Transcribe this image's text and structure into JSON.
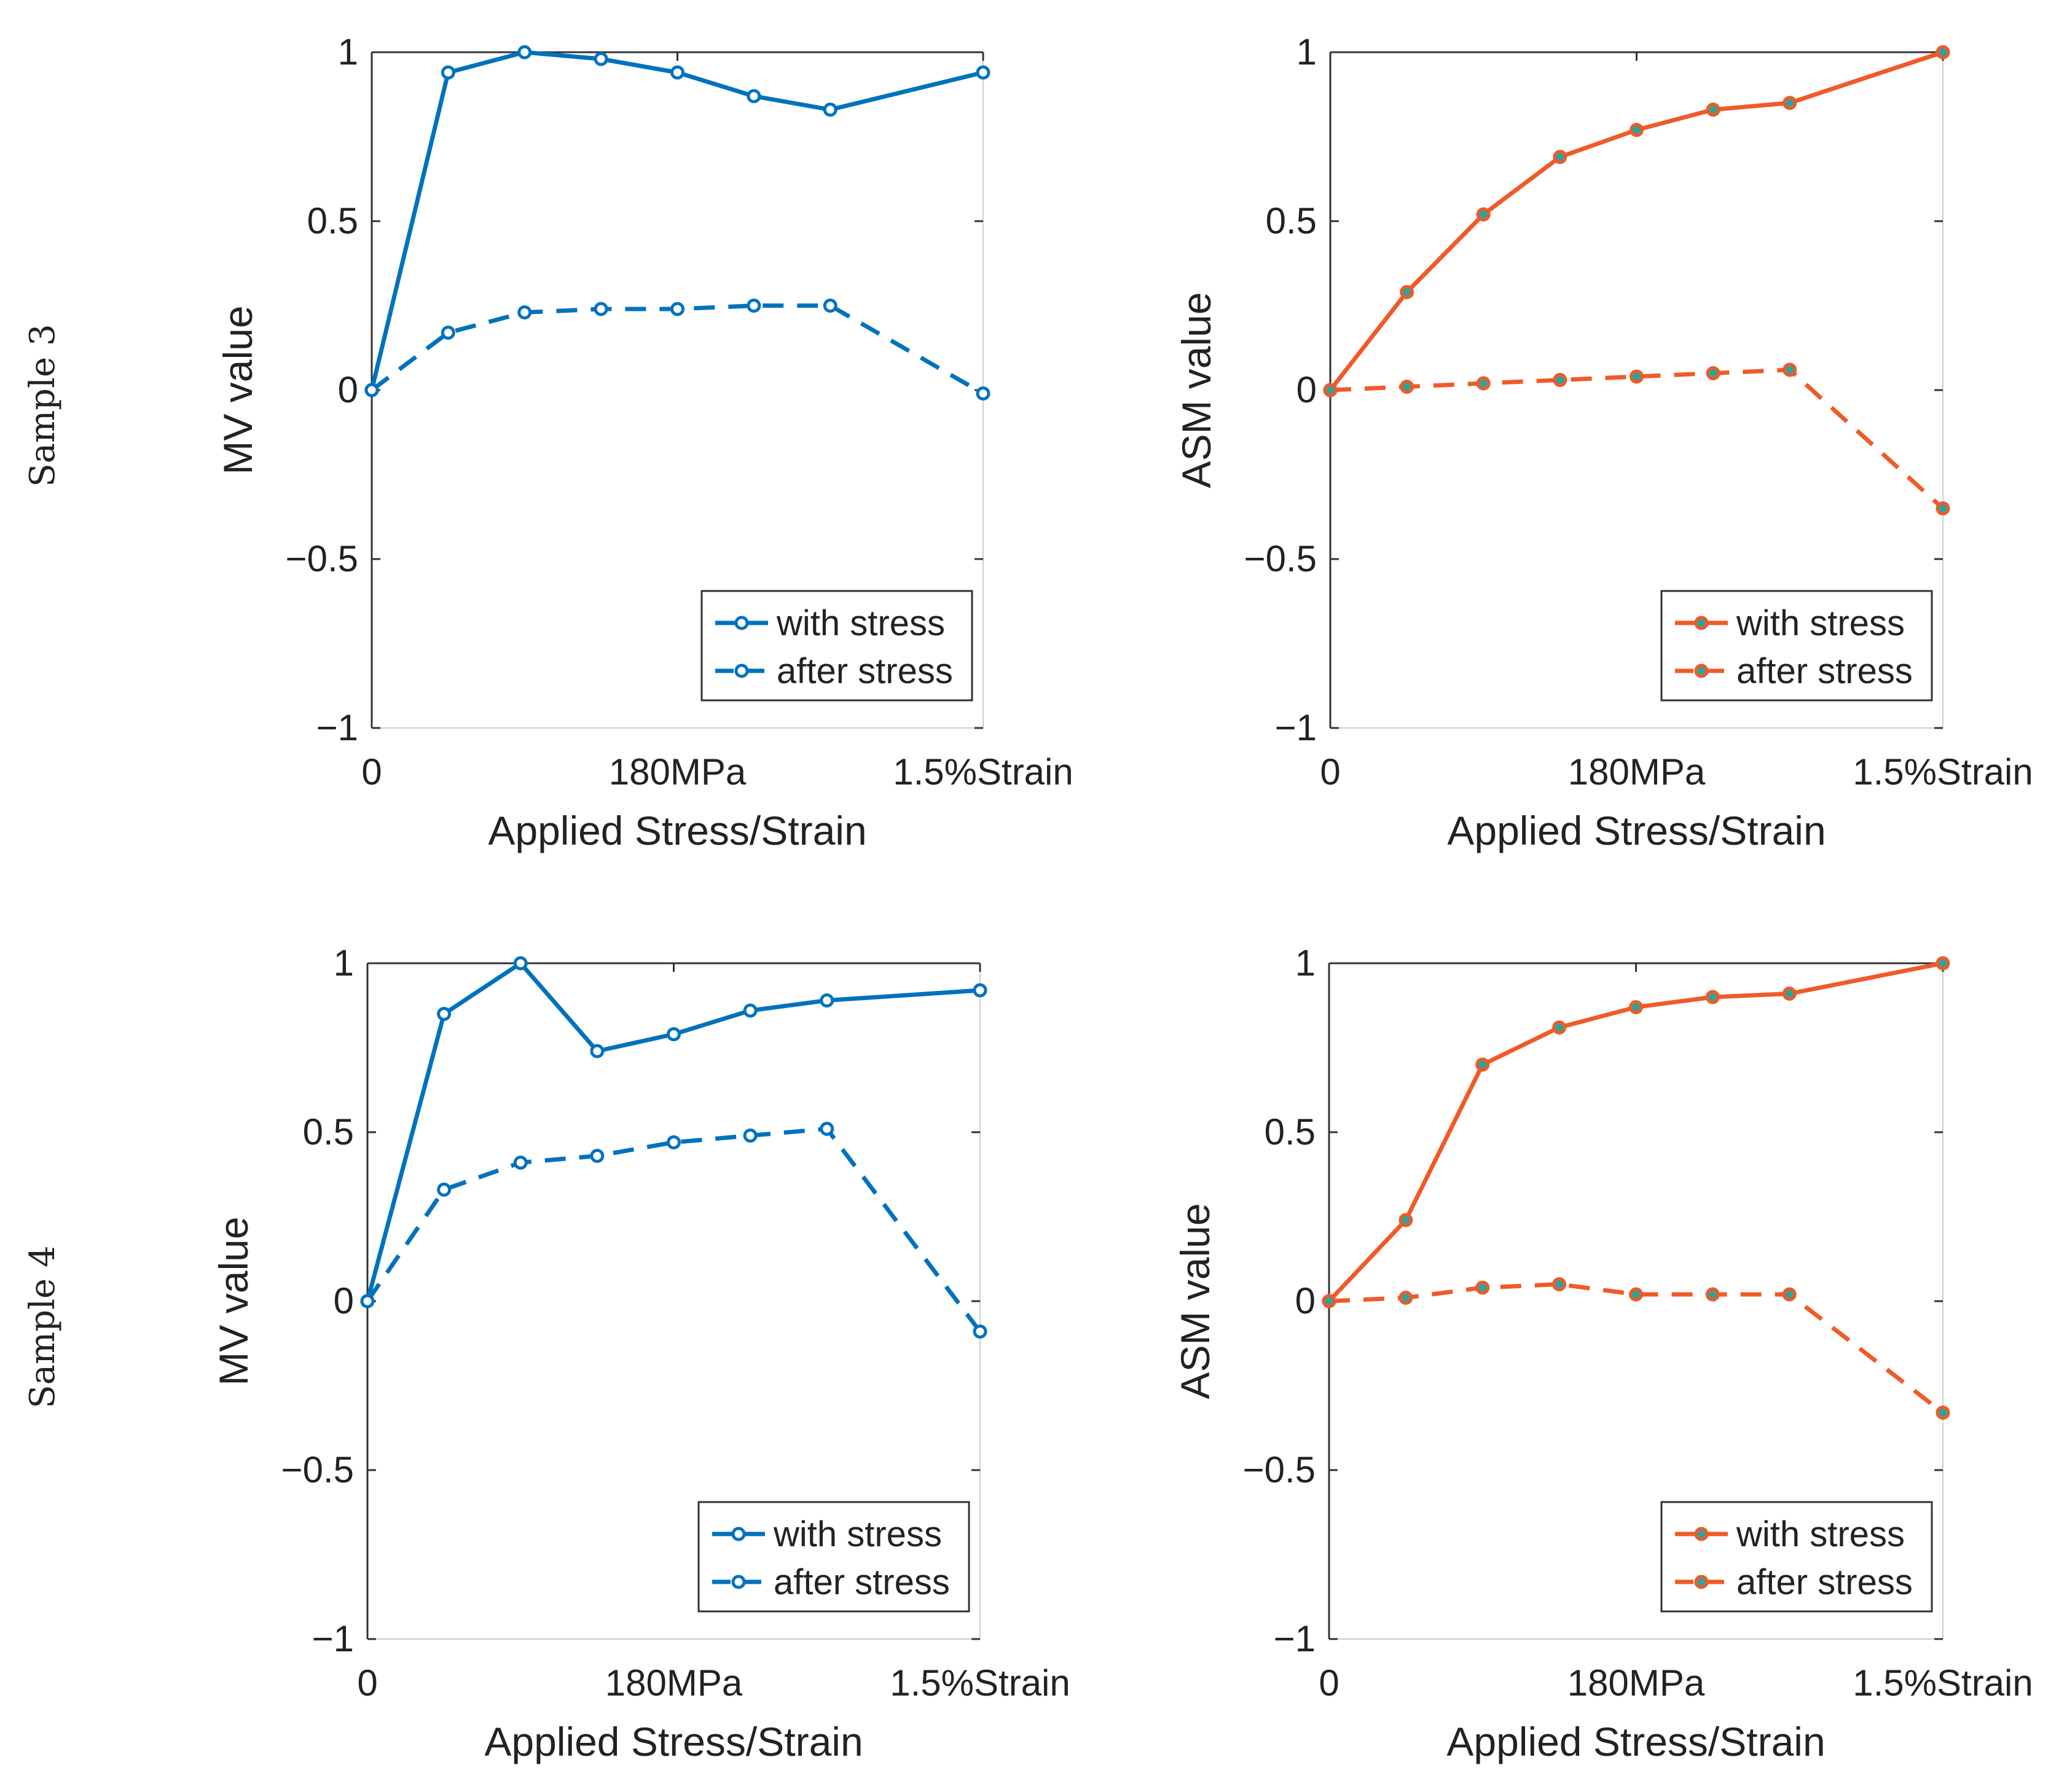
{
  "row_labels": [
    "Sample 3",
    "Sample 4"
  ],
  "colors": {
    "blue": "#0072BD",
    "orange": "#F05A28",
    "marker_fill_orange": "#2FA39A"
  },
  "chart_data": [
    {
      "type": "line",
      "title": "",
      "row": "Sample 3",
      "xlabel": "Applied Stress/Strain",
      "ylabel": "MV value",
      "ylim": [
        -1,
        1
      ],
      "yticks": [
        -1,
        -0.5,
        0,
        0.5,
        1
      ],
      "ytick_labels": [
        "−1",
        "−0.5",
        "0",
        "0.5",
        "1"
      ],
      "xlim": [
        0,
        8
      ],
      "xticks": [
        0,
        4,
        8
      ],
      "xtick_labels": [
        "0",
        "180MPa",
        "1.5%Strain"
      ],
      "x": [
        0,
        1,
        2,
        3,
        4,
        5,
        6,
        8
      ],
      "color": "#0072BD",
      "legend_loc": "bottom-right",
      "series": [
        {
          "name": "with stress",
          "style": "solid",
          "values": [
            0,
            0.94,
            1.0,
            0.98,
            0.94,
            0.87,
            0.83,
            0.94
          ]
        },
        {
          "name": "after stress",
          "style": "dashed",
          "values": [
            0,
            0.17,
            0.23,
            0.24,
            0.24,
            0.25,
            0.25,
            -0.01
          ]
        }
      ]
    },
    {
      "type": "line",
      "title": "",
      "row": "Sample 3",
      "xlabel": "Applied Stress/Strain",
      "ylabel": "ASM value",
      "ylim": [
        -1,
        1
      ],
      "yticks": [
        -1,
        -0.5,
        0,
        0.5,
        1
      ],
      "ytick_labels": [
        "−1",
        "−0.5",
        "0",
        "0.5",
        "1"
      ],
      "xlim": [
        0,
        8
      ],
      "xticks": [
        0,
        4,
        8
      ],
      "xtick_labels": [
        "0",
        "180MPa",
        "1.5%Strain"
      ],
      "x": [
        0,
        1,
        2,
        3,
        4,
        5,
        6,
        8
      ],
      "color": "#F05A28",
      "legend_loc": "bottom-right",
      "series": [
        {
          "name": "with stress",
          "style": "solid",
          "values": [
            0,
            0.29,
            0.52,
            0.69,
            0.77,
            0.83,
            0.85,
            1.0
          ]
        },
        {
          "name": "after stress",
          "style": "dashed",
          "values": [
            0,
            0.01,
            0.02,
            0.03,
            0.04,
            0.05,
            0.06,
            -0.35
          ]
        }
      ]
    },
    {
      "type": "line",
      "title": "",
      "row": "Sample 4",
      "xlabel": "Applied Stress/Strain",
      "ylabel": "MV value",
      "ylim": [
        -1,
        1
      ],
      "yticks": [
        -1,
        -0.5,
        0,
        0.5,
        1
      ],
      "ytick_labels": [
        "−1",
        "−0.5",
        "0",
        "0.5",
        "1"
      ],
      "xlim": [
        0,
        8
      ],
      "xticks": [
        0,
        4,
        8
      ],
      "xtick_labels": [
        "0",
        "180MPa",
        "1.5%Strain"
      ],
      "x": [
        0,
        1,
        2,
        3,
        4,
        5,
        6,
        8
      ],
      "color": "#0072BD",
      "legend_loc": "bottom-right",
      "series": [
        {
          "name": "with stress",
          "style": "solid",
          "values": [
            0,
            0.85,
            1.0,
            0.74,
            0.79,
            0.86,
            0.89,
            0.92
          ]
        },
        {
          "name": "after stress",
          "style": "dashed",
          "values": [
            0,
            0.33,
            0.41,
            0.43,
            0.47,
            0.49,
            0.51,
            -0.09
          ]
        }
      ]
    },
    {
      "type": "line",
      "title": "",
      "row": "Sample 4",
      "xlabel": "Applied Stress/Strain",
      "ylabel": "ASM value",
      "ylim": [
        -1,
        1
      ],
      "yticks": [
        -1,
        -0.5,
        0,
        0.5,
        1
      ],
      "ytick_labels": [
        "−1",
        "−0.5",
        "0",
        "0.5",
        "1"
      ],
      "xlim": [
        0,
        8
      ],
      "xticks": [
        0,
        4,
        8
      ],
      "xtick_labels": [
        "0",
        "180MPa",
        "1.5%Strain"
      ],
      "x": [
        0,
        1,
        2,
        3,
        4,
        5,
        6,
        8
      ],
      "color": "#F05A28",
      "legend_loc": "bottom-right",
      "series": [
        {
          "name": "with stress",
          "style": "solid",
          "values": [
            0,
            0.24,
            0.7,
            0.81,
            0.87,
            0.9,
            0.91,
            1.0
          ]
        },
        {
          "name": "after stress",
          "style": "dashed",
          "values": [
            0,
            0.01,
            0.04,
            0.05,
            0.02,
            0.02,
            0.02,
            -0.33
          ]
        }
      ]
    }
  ]
}
